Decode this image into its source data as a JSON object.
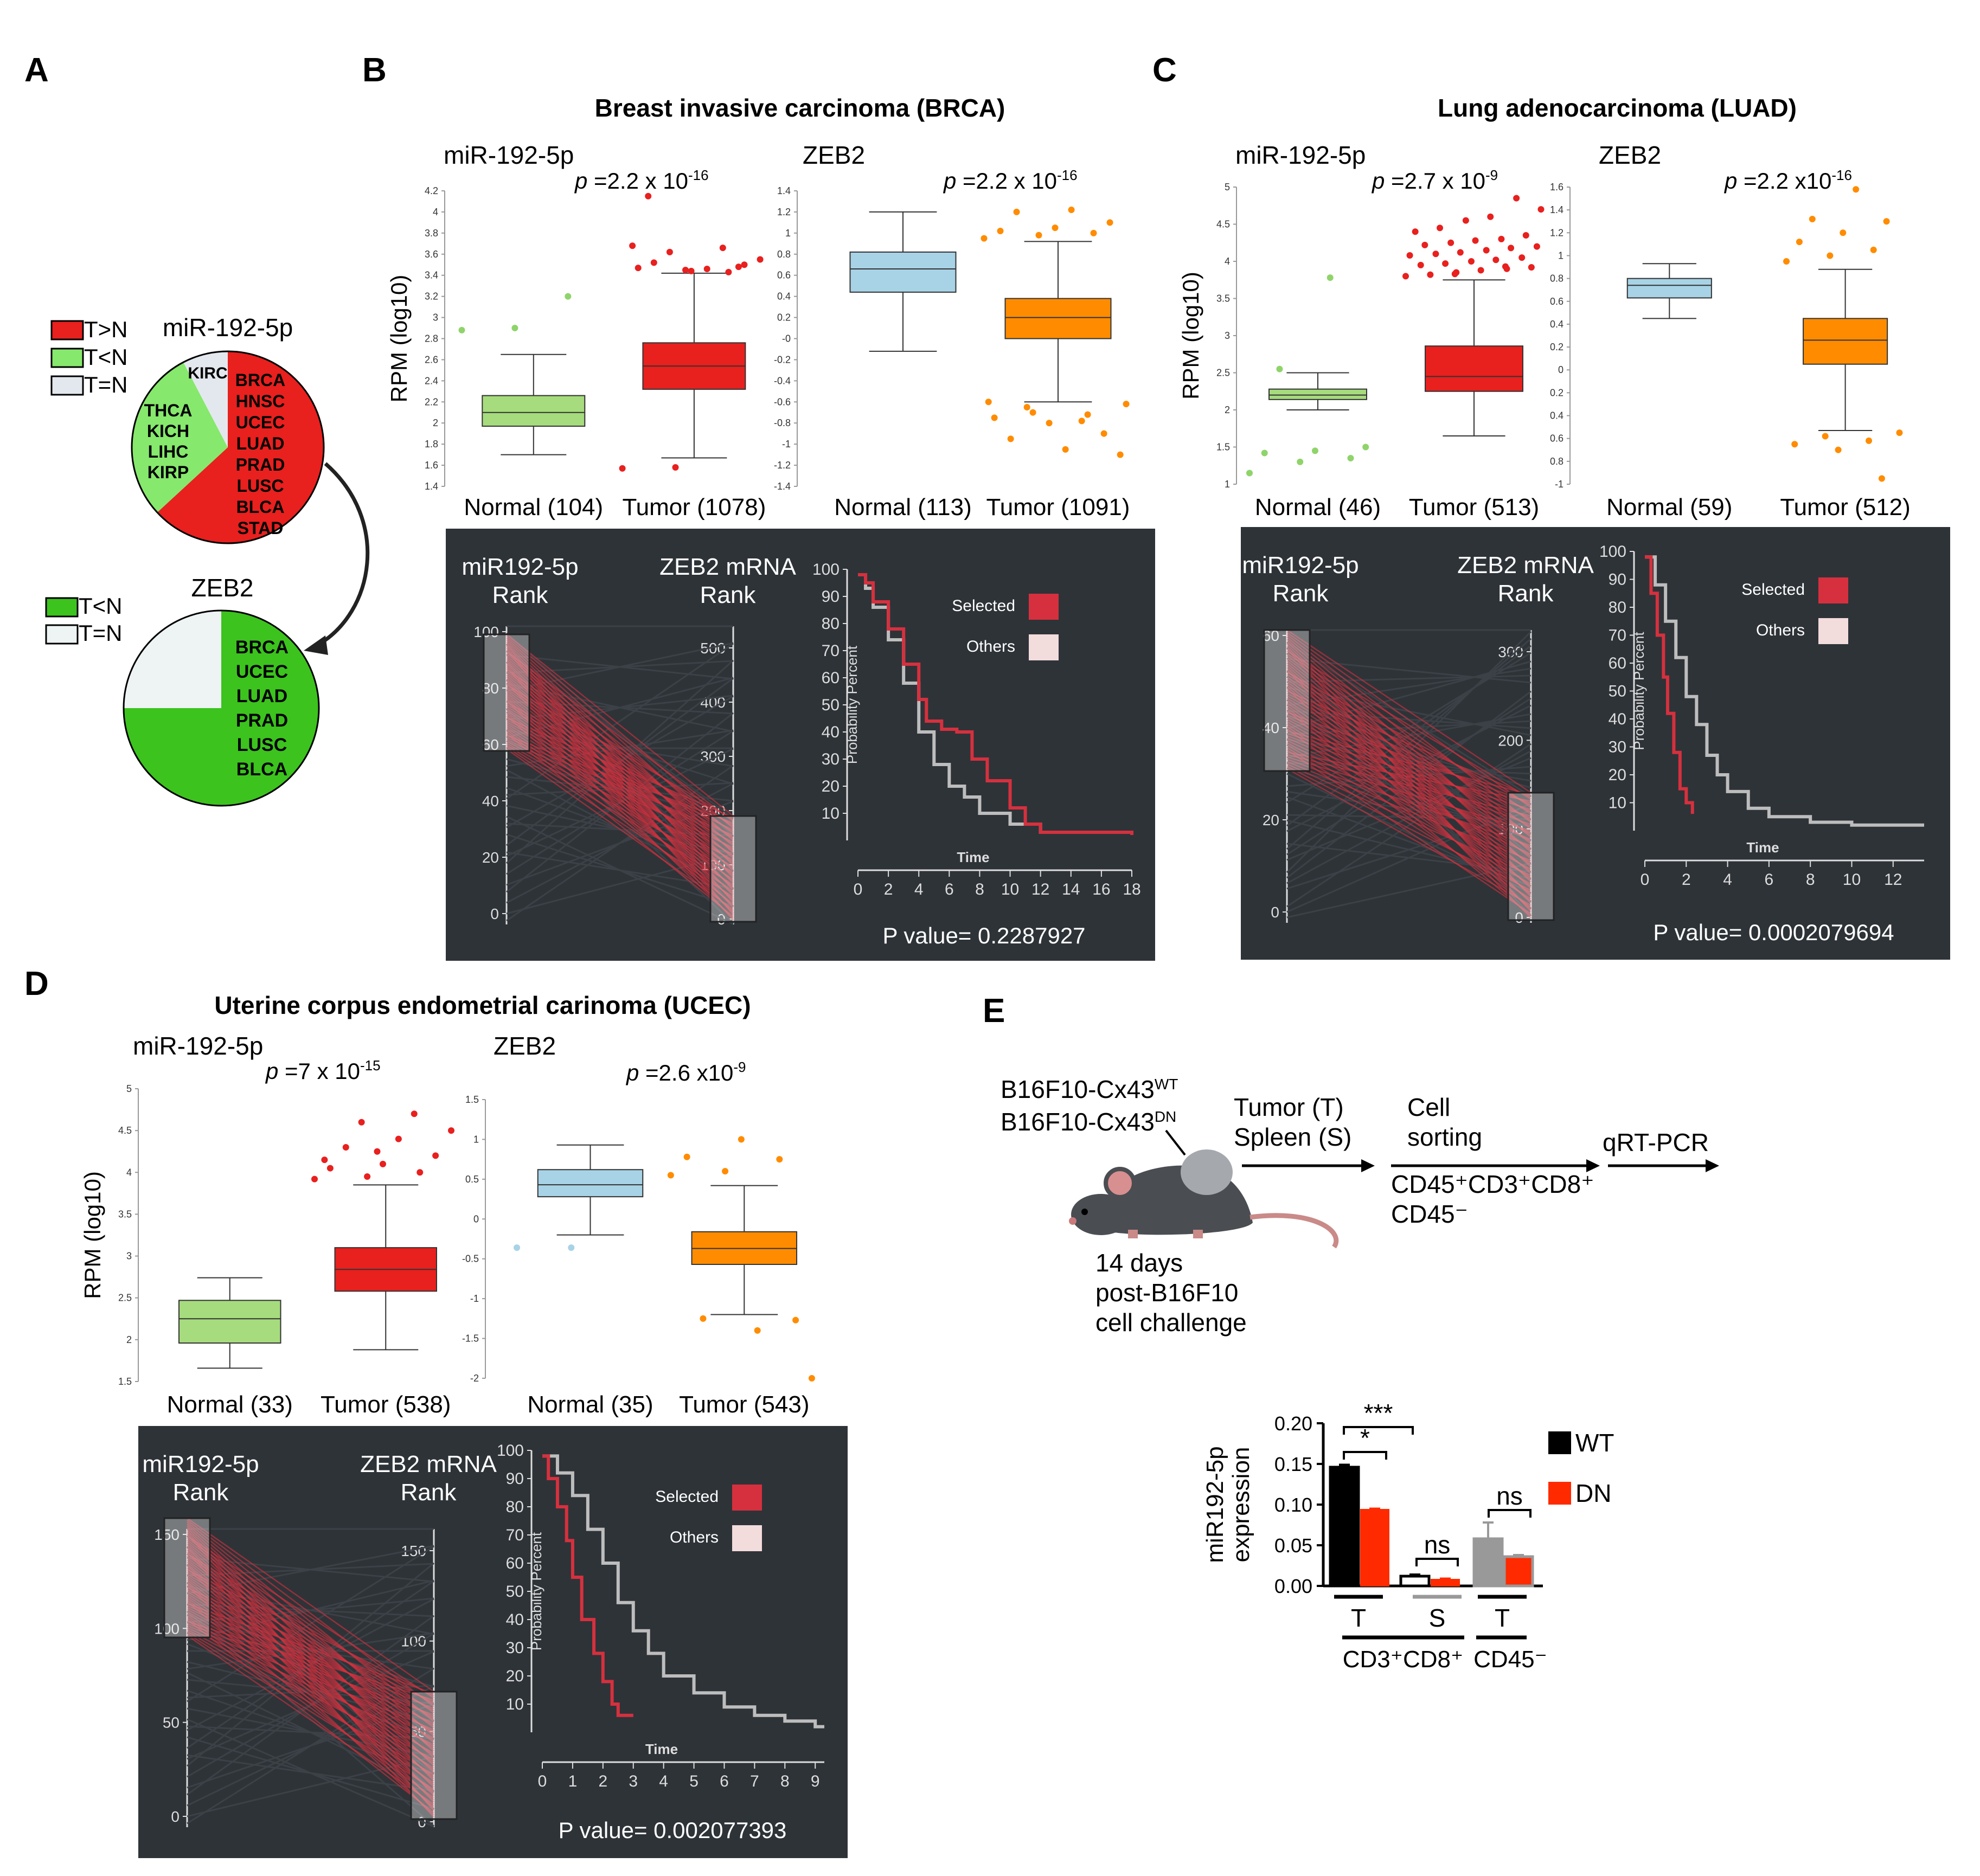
{
  "panel_labels": {
    "A": "A",
    "B": "B",
    "C": "C",
    "D": "D",
    "E": "E"
  },
  "colors": {
    "red": "#e8201e",
    "green": "#86e86c",
    "green_dark": "#3cc31e",
    "grey": "#e3e8ee",
    "blue": "#a8d3e6",
    "orange": "#ff8c00",
    "light_green": "#a6dc7d",
    "dark_panel": "#2e3338",
    "km_selected": "#d6303e",
    "km_others": "#bdbdbd"
  },
  "panelA": {
    "legend1": [
      {
        "label": "T>N",
        "color": "#e8201e"
      },
      {
        "label": "T<N",
        "color": "#86e86c"
      },
      {
        "label": "T=N",
        "color": "#e3e8ee"
      }
    ],
    "pie1_title": "miR-192-5p",
    "pie1_kirc": "KIRC",
    "pie1_red_list": [
      "BRCA",
      "HNSC",
      "UCEC",
      "LUAD",
      "PRAD",
      "LUSC",
      "BLCA",
      "STAD"
    ],
    "pie1_green_list": [
      "THCA",
      "KICH",
      "LIHC",
      "KIRP"
    ],
    "legend2": [
      {
        "label": "T<N",
        "color": "#3cc31e"
      },
      {
        "label": "T=N",
        "color": "#eef3f4"
      }
    ],
    "pie2_title": "ZEB2",
    "pie2_green_list": [
      "BRCA",
      "UCEC",
      "LUAD",
      "PRAD",
      "LUSC",
      "BLCA"
    ]
  },
  "chart_data": [
    {
      "id": "B-box-mir",
      "type": "box",
      "panel": "B",
      "title": "Breast invasive carcinoma (BRCA)",
      "label": "miR-192-5p",
      "p_prefix": "p",
      "p_value": "=2.2 x 10",
      "p_exp": "-16",
      "ylabel": "RPM (log10)",
      "ylim": [
        1.4,
        4.2
      ],
      "ticks": [
        "1.4",
        "1.6",
        "1.8",
        "2",
        "2.2",
        "2.4",
        "2.6",
        "2.8",
        "3",
        "3.2",
        "3.4",
        "3.6",
        "3.8",
        "4",
        "4.2"
      ],
      "groups": [
        {
          "name": "Normal (104)",
          "color": "#a6dc7d",
          "whisker_low": 1.7,
          "q1": 1.97,
          "median": 2.1,
          "q3": 2.26,
          "whisker_high": 2.65,
          "outliers": [
            2.88,
            2.9,
            3.2
          ]
        },
        {
          "name": "Tumor (1078)",
          "color": "#e8201e",
          "whisker_low": 1.67,
          "q1": 2.32,
          "median": 2.54,
          "q3": 2.76,
          "whisker_high": 3.42,
          "outliers": [
            1.57,
            1.58,
            3.43,
            3.47,
            3.44,
            3.5,
            3.52,
            3.46,
            3.55,
            3.62,
            3.66,
            3.68,
            3.45,
            3.48,
            4.15
          ]
        }
      ]
    },
    {
      "id": "B-box-zeb",
      "type": "box",
      "panel": "B",
      "label": "ZEB2",
      "p_prefix": "p",
      "p_value": "=2.2 x 10",
      "p_exp": "-16",
      "ylim": [
        -1.4,
        1.4
      ],
      "ticks": [
        "-1.4",
        "-1.2",
        "-1",
        "-0.8",
        "-0.6",
        "-0.4",
        "-0.2",
        "-0",
        "0.2",
        "0.4",
        "0.6",
        "0.8",
        "1",
        "1.2",
        "1.4"
      ],
      "groups": [
        {
          "name": "Normal (113)",
          "color": "#a8d3e6",
          "whisker_low": -0.12,
          "q1": 0.44,
          "median": 0.66,
          "q3": 0.82,
          "whisker_high": 1.2,
          "outliers": []
        },
        {
          "name": "Tumor (1091)",
          "color": "#ff8c00",
          "whisker_low": -0.6,
          "q1": 0.0,
          "median": 0.2,
          "q3": 0.38,
          "whisker_high": 0.92,
          "outliers": [
            0.95,
            0.98,
            1.0,
            1.02,
            1.05,
            1.1,
            1.2,
            1.22,
            -0.62,
            -0.7,
            -0.72,
            -0.75,
            -0.8,
            -0.9,
            -0.95,
            -1.05,
            -1.1,
            -0.65,
            -0.78,
            -0.6
          ]
        }
      ]
    },
    {
      "id": "C-box-mir",
      "type": "box",
      "panel": "C",
      "title": "Lung adenocarcinoma (LUAD)",
      "label": "miR-192-5p",
      "p_prefix": "p",
      "p_value": "=2.7 x 10",
      "p_exp": "-9",
      "ylabel": "RPM (log10)",
      "ylim": [
        1,
        5
      ],
      "ticks": [
        "1",
        "1.5",
        "2",
        "2.5",
        "3",
        "3.5",
        "4",
        "4.5",
        "5"
      ],
      "groups": [
        {
          "name": "Normal (46)",
          "color": "#a6dc7d",
          "whisker_low": 2.0,
          "q1": 2.14,
          "median": 2.2,
          "q3": 2.28,
          "whisker_high": 2.5,
          "outliers": [
            1.15,
            1.3,
            1.35,
            1.42,
            1.45,
            1.5,
            2.55,
            3.78
          ]
        },
        {
          "name": "Tumor (513)",
          "color": "#e8201e",
          "whisker_low": 1.65,
          "q1": 2.25,
          "median": 2.45,
          "q3": 2.86,
          "whisker_high": 3.75,
          "outliers": [
            3.8,
            3.85,
            3.9,
            3.95,
            4.0,
            4.05,
            4.1,
            4.15,
            4.2,
            4.25,
            4.3,
            4.4,
            4.55,
            4.85,
            3.82,
            3.88,
            3.92,
            3.97,
            4.02,
            4.08,
            4.12,
            4.18,
            4.22,
            4.28,
            4.35,
            4.45,
            4.6,
            4.7,
            3.83,
            3.93
          ]
        }
      ]
    },
    {
      "id": "C-box-zeb",
      "type": "box",
      "panel": "C",
      "label": "ZEB2",
      "p_prefix": "p",
      "p_value": "=2.2 x10",
      "p_exp": "-16",
      "ylim": [
        -1,
        1.6
      ],
      "ticks": [
        "-1",
        "0.8",
        "0.6",
        "0.4",
        "0.2",
        "0",
        "0.2",
        "0.4",
        "0.6",
        "0.8",
        "1",
        "1.2",
        "1.4",
        "1.6"
      ],
      "groups": [
        {
          "name": "Normal (59)",
          "color": "#a8d3e6",
          "whisker_low": 0.45,
          "q1": 0.63,
          "median": 0.74,
          "q3": 0.8,
          "whisker_high": 0.93,
          "outliers": []
        },
        {
          "name": "Tumor (512)",
          "color": "#ff8c00",
          "whisker_low": -0.53,
          "q1": 0.05,
          "median": 0.26,
          "q3": 0.45,
          "whisker_high": 0.88,
          "outliers": [
            0.95,
            1.0,
            1.05,
            1.12,
            1.2,
            1.3,
            1.32,
            1.58,
            -0.55,
            -0.58,
            -0.62,
            -0.65,
            -0.7,
            -0.95
          ]
        }
      ]
    },
    {
      "id": "D-box-mir",
      "type": "box",
      "panel": "D",
      "title": "Uterine corpus endometrial carinoma (UCEC)",
      "label": "miR-192-5p",
      "p_prefix": "p",
      "p_value": "=7 x 10",
      "p_exp": "-15",
      "ylabel": "RPM (log10)",
      "ylim": [
        1.5,
        5
      ],
      "ticks": [
        "1.5",
        "2",
        "2.5",
        "3",
        "3.5",
        "4",
        "4.5",
        "5"
      ],
      "groups": [
        {
          "name": "Normal (33)",
          "color": "#a6dc7d",
          "whisker_low": 1.66,
          "q1": 1.96,
          "median": 2.25,
          "q3": 2.47,
          "whisker_high": 2.74,
          "outliers": []
        },
        {
          "name": "Tumor (538)",
          "color": "#e8201e",
          "whisker_low": 1.88,
          "q1": 2.58,
          "median": 2.84,
          "q3": 3.1,
          "whisker_high": 3.85,
          "outliers": [
            3.92,
            3.95,
            4.0,
            4.05,
            4.1,
            4.2,
            4.3,
            4.4,
            4.5,
            4.6,
            4.7,
            4.15,
            4.25
          ]
        }
      ]
    },
    {
      "id": "D-box-zeb",
      "type": "box",
      "panel": "D",
      "label": "ZEB2",
      "p_prefix": "p",
      "p_value": "=2.6 x10",
      "p_exp": "-9",
      "ylim": [
        -2,
        1.5
      ],
      "ticks": [
        "-2",
        "-1.5",
        "-1",
        "-0.5",
        "0",
        "0.5",
        "1",
        "1.5"
      ],
      "groups": [
        {
          "name": "Normal (35)",
          "color": "#a8d3e6",
          "whisker_low": -0.2,
          "q1": 0.28,
          "median": 0.43,
          "q3": 0.62,
          "whisker_high": 0.93,
          "outliers": [
            -0.36,
            -0.36
          ]
        },
        {
          "name": "Tumor (543)",
          "color": "#ff8c00",
          "whisker_low": -1.2,
          "q1": -0.57,
          "median": -0.37,
          "q3": -0.16,
          "whisker_high": 0.42,
          "outliers": [
            0.55,
            0.6,
            0.75,
            0.78,
            1.0,
            -1.27,
            -1.25,
            -1.4,
            -2.0
          ]
        }
      ]
    },
    {
      "id": "B-km",
      "type": "line",
      "panel": "B",
      "rank_left_label": "miR192-5p\nRank",
      "rank_right_label": "ZEB2 mRNA\nRank",
      "left_ticks": [
        "100",
        "80",
        "60",
        "40",
        "20",
        "0"
      ],
      "right_ticks": [
        "500",
        "400",
        "300",
        "200",
        "100",
        "0"
      ],
      "ylabel": "Probability Percent",
      "xlabel": "Time",
      "xticks": [
        "0",
        "2",
        "4",
        "6",
        "8",
        "10",
        "12",
        "14",
        "16",
        "18"
      ],
      "yticks": [
        "100",
        "90",
        "80",
        "70",
        "60",
        "50",
        "40",
        "30",
        "20",
        "10"
      ],
      "legend": [
        "Selected",
        "Others"
      ],
      "p_text": "P value= 0.2287927"
    },
    {
      "id": "C-km",
      "type": "line",
      "panel": "C",
      "rank_left_label": "miR192-5p\nRank",
      "rank_right_label": "ZEB2 mRNA\nRank",
      "left_ticks": [
        "60",
        "40",
        "20",
        "0"
      ],
      "right_ticks": [
        "300",
        "200",
        "100",
        "0"
      ],
      "ylabel": "Probability Percent",
      "xlabel": "Time",
      "xticks": [
        "0",
        "2",
        "4",
        "6",
        "8",
        "10",
        "12"
      ],
      "yticks": [
        "100",
        "90",
        "80",
        "70",
        "60",
        "50",
        "40",
        "30",
        "20",
        "10"
      ],
      "legend": [
        "Selected",
        "Others"
      ],
      "p_text": "P value= 0.0002079694"
    },
    {
      "id": "D-km",
      "type": "line",
      "panel": "D",
      "rank_left_label": "miR192-5p\nRank",
      "rank_right_label": "ZEB2 mRNA\nRank",
      "left_ticks": [
        "150",
        "100",
        "50",
        "0"
      ],
      "right_ticks": [
        "150",
        "100",
        "50",
        "0"
      ],
      "ylabel": "Probability Percent",
      "xlabel": "Time",
      "xticks": [
        "0",
        "1",
        "2",
        "3",
        "4",
        "5",
        "6",
        "7",
        "8",
        "9"
      ],
      "yticks": [
        "100",
        "90",
        "80",
        "70",
        "60",
        "50",
        "40",
        "30",
        "20",
        "10"
      ],
      "legend": [
        "Selected",
        "Others"
      ],
      "p_text": "P value= 0.002077393"
    },
    {
      "id": "E-bar",
      "type": "bar",
      "panel": "E",
      "ylabel": "miR192-5p\nexpression",
      "ylim": [
        0,
        0.2
      ],
      "yticks": [
        "0.00",
        "0.05",
        "0.10",
        "0.15",
        "0.20"
      ],
      "groups": [
        "T",
        "S",
        "T"
      ],
      "group_labels": [
        "CD3⁺CD8⁺",
        "CD45⁻"
      ],
      "series": [
        {
          "name": "WT",
          "values": [
            0.146,
            0.012,
            0.058
          ],
          "errors": [
            0.003,
            0.002,
            0.02
          ]
        },
        {
          "name": "DN",
          "values": [
            0.094,
            0.008,
            0.036
          ],
          "errors": [
            0.001,
            0.001,
            0.002
          ]
        }
      ],
      "sig": [
        "*",
        "***",
        "ns",
        "ns"
      ]
    }
  ],
  "panelE": {
    "mouse_label_wt": "B16F10-Cx43",
    "mouse_sup_wt": "WT",
    "mouse_label_dn": "B16F10-Cx43",
    "mouse_sup_dn": "DN",
    "days": [
      "14 days",
      "post-B16F10",
      "cell challenge"
    ],
    "step1": [
      "Tumor (T)",
      "Spleen (S)"
    ],
    "step2": [
      "Cell",
      "sorting"
    ],
    "sort_line1": "CD45⁺CD3⁺CD8⁺",
    "sort_line2": "CD45⁻",
    "step3": "qRT-PCR"
  }
}
